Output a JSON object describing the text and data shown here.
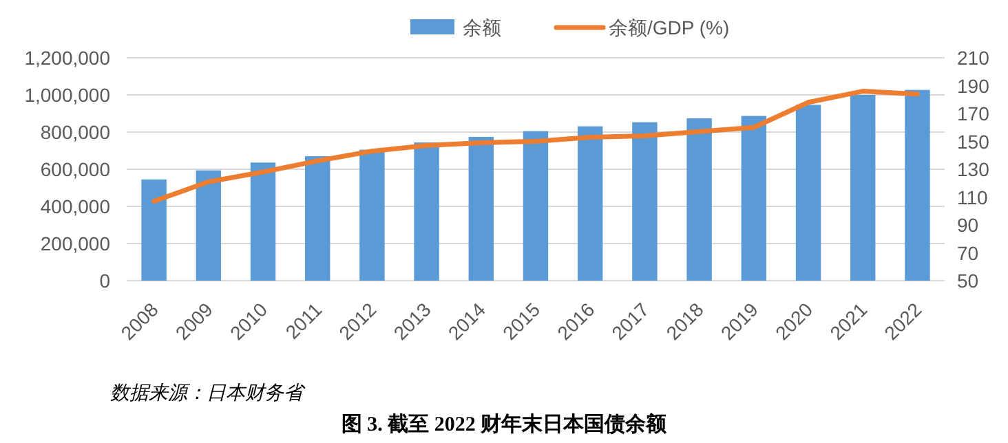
{
  "chart_data": {
    "type": "bar",
    "categories": [
      "2008",
      "2009",
      "2010",
      "2011",
      "2012",
      "2013",
      "2014",
      "2015",
      "2016",
      "2017",
      "2018",
      "2019",
      "2020",
      "2021",
      "2022"
    ],
    "series": [
      {
        "name": "余额",
        "color": "#5b9bd5",
        "values": [
          545000,
          594000,
          636000,
          670000,
          705000,
          744000,
          774000,
          805000,
          831000,
          853000,
          874000,
          887000,
          947000,
          1000000,
          1027000
        ]
      },
      {
        "name": "余额/GDP (%)",
        "type": "line",
        "axis": "y2",
        "color": "#ed7d31",
        "values": [
          107,
          121,
          128,
          136,
          143,
          147,
          149,
          150,
          153,
          154,
          157,
          160,
          178,
          186,
          184
        ]
      }
    ],
    "ylim": [
      0,
      1200000
    ],
    "yticks": [
      0,
      {
        "value": 200000,
        "label": "200,000"
      },
      {
        "value": 400000,
        "label": "400,000"
      },
      {
        "value": 600000,
        "label": "600,000"
      },
      {
        "value": 800000,
        "label": "800,000"
      },
      {
        "value": 1000000,
        "label": "1,000,000"
      },
      {
        "value": 1200000,
        "label": "1,200,000"
      }
    ],
    "y2lim": [
      50,
      210
    ],
    "y2ticks": [
      50,
      70,
      90,
      110,
      130,
      150,
      170,
      190,
      210
    ],
    "grid": "y",
    "legend": "top",
    "marker": "none",
    "annotations": [
      "数据来源：日本财务省",
      "图 3. 截至 2022 财年末日本国债余额"
    ]
  }
}
